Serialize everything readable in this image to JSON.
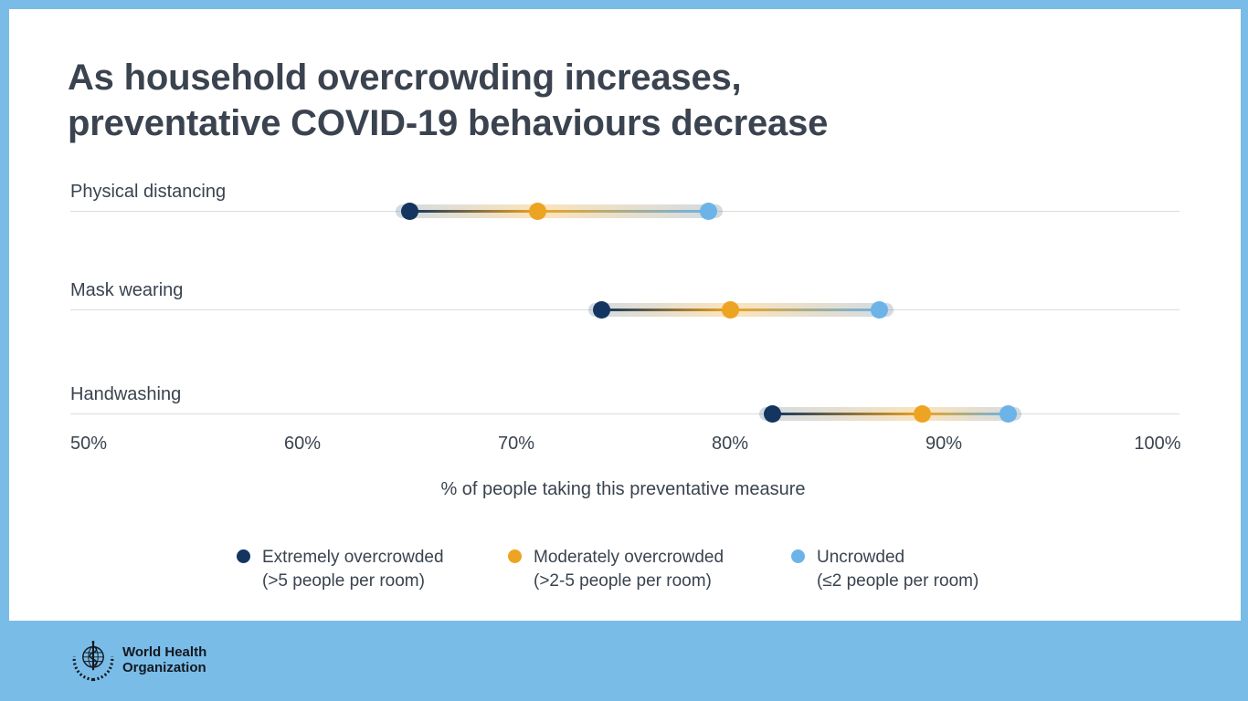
{
  "title": {
    "line1": "As household overcrowding increases,",
    "line2": "preventative COVID-19 behaviours decrease"
  },
  "chart_data": {
    "type": "scatter",
    "subtype": "dumbbell-dot-plot",
    "categories": [
      "Physical distancing",
      "Mask wearing",
      "Handwashing"
    ],
    "series": [
      {
        "name": "Extremely overcrowded (>5 people per room)",
        "color": "#14355F",
        "values": [
          65,
          74,
          82
        ]
      },
      {
        "name": "Moderately overcrowded (>2-5 people per room)",
        "color": "#EDA422",
        "values": [
          71,
          80,
          89
        ]
      },
      {
        "name": "Uncrowded (≤2 people per room)",
        "color": "#6CB4E8",
        "values": [
          79,
          87,
          93
        ]
      }
    ],
    "title": "As household overcrowding increases, preventative COVID-19 behaviours decrease",
    "xlabel": "% of people taking this preventative measure",
    "ylabel": "",
    "xlim": [
      50,
      100
    ],
    "ticks": [
      "50%",
      "60%",
      "70%",
      "80%",
      "90%",
      "100%"
    ],
    "grid": "horizontal category lines only",
    "legend_position": "bottom"
  },
  "legend": [
    {
      "line1": "Extremely overcrowded",
      "line2": "(>5 people per room)",
      "color": "#14355F"
    },
    {
      "line1": "Moderately overcrowded",
      "line2": "(>2-5 people per room)",
      "color": "#EDA422"
    },
    {
      "line1": "Uncrowded",
      "line2": "(≤2 people per room)",
      "color": "#6CB4E8"
    }
  ],
  "footer": {
    "org_line1": "World Health",
    "org_line2": "Organization"
  },
  "colors": {
    "background": "#7ABCE8",
    "card": "#FFFFFF",
    "text": "#3A434F",
    "grid_line": "#D9DCDE",
    "navy": "#14355F",
    "orange": "#EDA422",
    "light_blue": "#6CB4E8"
  }
}
